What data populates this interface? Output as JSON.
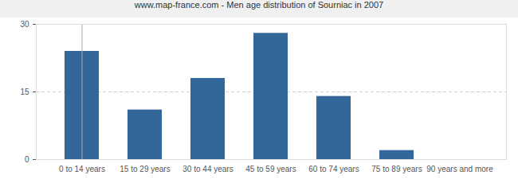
{
  "chart_data": {
    "type": "bar",
    "title": "www.map-france.com - Men age distribution of Sourniac in 2007",
    "categories": [
      "0 to 14 years",
      "15 to 29 years",
      "30 to 44 years",
      "45 to 59 years",
      "60 to 74 years",
      "75 to 89 years",
      "90 years and more"
    ],
    "values": [
      24,
      11,
      18,
      28,
      14,
      2,
      0
    ],
    "color": "#336699",
    "ylim": [
      0,
      30
    ],
    "yticks": [
      0,
      15,
      30
    ],
    "grid": true
  }
}
